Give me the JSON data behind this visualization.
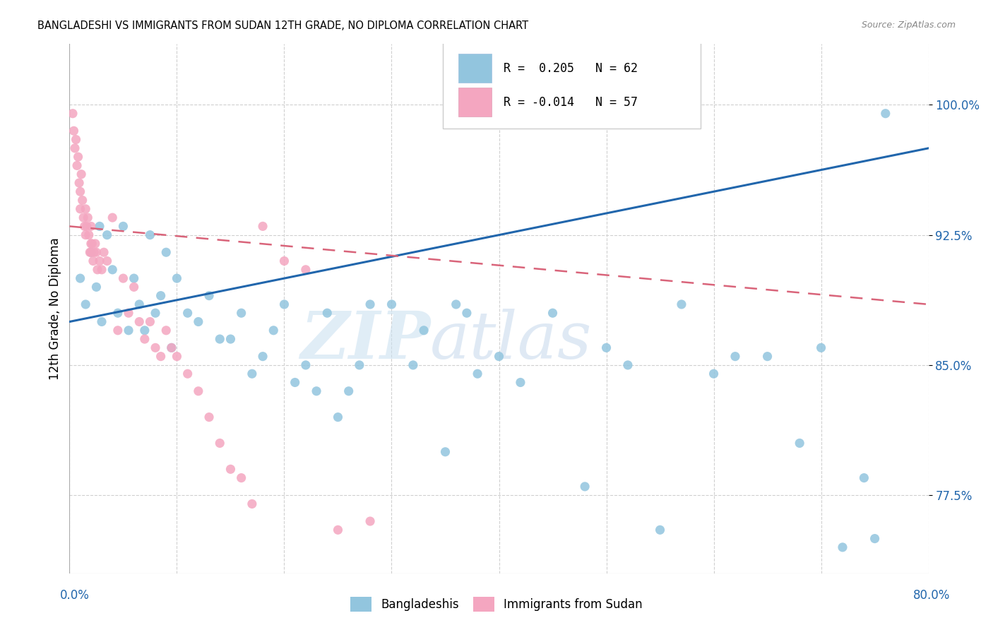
{
  "title": "BANGLADESHI VS IMMIGRANTS FROM SUDAN 12TH GRADE, NO DIPLOMA CORRELATION CHART",
  "source": "Source: ZipAtlas.com",
  "ylabel": "12th Grade, No Diploma",
  "y_ticks": [
    77.5,
    85.0,
    92.5,
    100.0
  ],
  "y_tick_labels": [
    "77.5%",
    "85.0%",
    "92.5%",
    "100.0%"
  ],
  "x_lim": [
    0.0,
    80.0
  ],
  "y_lim": [
    73.0,
    103.5
  ],
  "watermark_zip": "ZIP",
  "watermark_atlas": "atlas",
  "legend_R1": "R =  0.205",
  "legend_N1": "N = 62",
  "legend_R2": "R = -0.014",
  "legend_N2": "N = 57",
  "blue_color": "#92c5de",
  "pink_color": "#f4a6c0",
  "blue_line_color": "#2166ac",
  "pink_line_color": "#d9647a",
  "blue_x": [
    1.0,
    1.5,
    2.0,
    2.5,
    2.8,
    3.0,
    3.5,
    4.0,
    4.5,
    5.0,
    5.5,
    6.0,
    6.5,
    7.0,
    7.5,
    8.0,
    8.5,
    9.0,
    9.5,
    10.0,
    11.0,
    12.0,
    13.0,
    14.0,
    15.0,
    16.0,
    17.0,
    18.0,
    19.0,
    20.0,
    21.0,
    22.0,
    23.0,
    24.0,
    25.0,
    26.0,
    27.0,
    28.0,
    30.0,
    32.0,
    33.0,
    35.0,
    36.0,
    37.0,
    38.0,
    40.0,
    42.0,
    45.0,
    48.0,
    50.0,
    52.0,
    55.0,
    57.0,
    60.0,
    62.0,
    65.0,
    68.0,
    70.0,
    72.0,
    74.0,
    75.0,
    76.0
  ],
  "blue_y": [
    90.0,
    88.5,
    91.5,
    89.5,
    93.0,
    87.5,
    92.5,
    90.5,
    88.0,
    93.0,
    87.0,
    90.0,
    88.5,
    87.0,
    92.5,
    88.0,
    89.0,
    91.5,
    86.0,
    90.0,
    88.0,
    87.5,
    89.0,
    86.5,
    86.5,
    88.0,
    84.5,
    85.5,
    87.0,
    88.5,
    84.0,
    85.0,
    83.5,
    88.0,
    82.0,
    83.5,
    85.0,
    88.5,
    88.5,
    85.0,
    87.0,
    80.0,
    88.5,
    88.0,
    84.5,
    85.5,
    84.0,
    88.0,
    78.0,
    86.0,
    85.0,
    75.5,
    88.5,
    84.5,
    85.5,
    85.5,
    80.5,
    86.0,
    74.5,
    78.5,
    75.0,
    99.5
  ],
  "pink_x": [
    0.3,
    0.4,
    0.5,
    0.6,
    0.7,
    0.8,
    0.9,
    1.0,
    1.0,
    1.1,
    1.2,
    1.3,
    1.4,
    1.5,
    1.5,
    1.6,
    1.7,
    1.8,
    1.9,
    2.0,
    2.0,
    2.0,
    2.1,
    2.2,
    2.3,
    2.4,
    2.5,
    2.6,
    2.8,
    3.0,
    3.2,
    3.5,
    4.0,
    4.5,
    5.0,
    5.5,
    6.0,
    6.5,
    7.0,
    7.5,
    8.0,
    8.5,
    9.0,
    9.5,
    10.0,
    11.0,
    12.0,
    13.0,
    14.0,
    15.0,
    16.0,
    17.0,
    18.0,
    20.0,
    22.0,
    25.0,
    28.0
  ],
  "pink_y": [
    99.5,
    98.5,
    97.5,
    98.0,
    96.5,
    97.0,
    95.5,
    95.0,
    94.0,
    96.0,
    94.5,
    93.5,
    93.0,
    94.0,
    92.5,
    93.0,
    93.5,
    92.5,
    91.5,
    93.0,
    92.0,
    91.5,
    92.0,
    91.0,
    91.5,
    92.0,
    91.5,
    90.5,
    91.0,
    90.5,
    91.5,
    91.0,
    93.5,
    87.0,
    90.0,
    88.0,
    89.5,
    87.5,
    86.5,
    87.5,
    86.0,
    85.5,
    87.0,
    86.0,
    85.5,
    84.5,
    83.5,
    82.0,
    80.5,
    79.0,
    78.5,
    77.0,
    93.0,
    91.0,
    90.5,
    75.5,
    76.0
  ]
}
